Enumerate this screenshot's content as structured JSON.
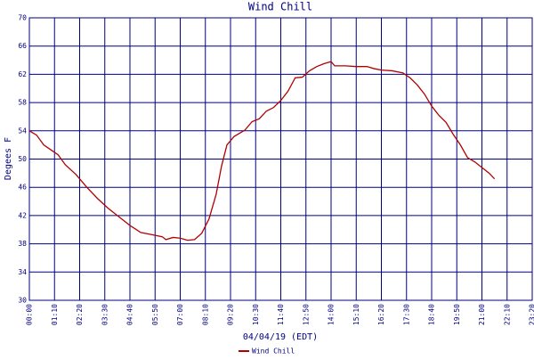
{
  "chart_data": {
    "type": "line",
    "title": "Wind Chill",
    "y_label": "Degees F",
    "x_label": "04/04/19 (EDT)",
    "xlim": [
      0,
      1400
    ],
    "ylim": [
      30,
      70
    ],
    "yticks": [
      30,
      34,
      38,
      42,
      46,
      50,
      54,
      58,
      62,
      66,
      70
    ],
    "xticks": [
      {
        "value": 0,
        "label": "00:00"
      },
      {
        "value": 70,
        "label": "01:10"
      },
      {
        "value": 140,
        "label": "02:20"
      },
      {
        "value": 210,
        "label": "03:30"
      },
      {
        "value": 280,
        "label": "04:40"
      },
      {
        "value": 350,
        "label": "05:50"
      },
      {
        "value": 420,
        "label": "07:00"
      },
      {
        "value": 490,
        "label": "08:10"
      },
      {
        "value": 560,
        "label": "09:20"
      },
      {
        "value": 630,
        "label": "10:30"
      },
      {
        "value": 700,
        "label": "11:40"
      },
      {
        "value": 770,
        "label": "12:50"
      },
      {
        "value": 840,
        "label": "14:00"
      },
      {
        "value": 910,
        "label": "15:10"
      },
      {
        "value": 980,
        "label": "16:20"
      },
      {
        "value": 1050,
        "label": "17:30"
      },
      {
        "value": 1120,
        "label": "18:40"
      },
      {
        "value": 1190,
        "label": "19:50"
      },
      {
        "value": 1260,
        "label": "21:00"
      },
      {
        "value": 1330,
        "label": "22:10"
      },
      {
        "value": 1400,
        "label": "23:20"
      }
    ],
    "grid": true,
    "legend": "bottom",
    "x": [
      0,
      20,
      40,
      60,
      80,
      100,
      130,
      160,
      190,
      220,
      250,
      280,
      310,
      340,
      370,
      380,
      400,
      420,
      440,
      460,
      480,
      500,
      520,
      535,
      550,
      570,
      600,
      620,
      640,
      660,
      680,
      700,
      720,
      740,
      760,
      780,
      800,
      820,
      840,
      850,
      880,
      910,
      940,
      960,
      980,
      1010,
      1040,
      1060,
      1080,
      1100,
      1120,
      1140,
      1160,
      1180,
      1200,
      1220,
      1240,
      1260,
      1280,
      1295
    ],
    "series": [
      {
        "name": "Wind Chill",
        "color": "#b00000",
        "values": [
          54,
          53.4,
          52,
          51.3,
          50.6,
          49.2,
          47.8,
          46,
          44.4,
          43,
          41.8,
          40.6,
          39.6,
          39.3,
          39,
          38.6,
          38.9,
          38.8,
          38.5,
          38.6,
          39.5,
          41.5,
          45,
          49,
          52,
          53.2,
          54.1,
          55.3,
          55.7,
          56.8,
          57.3,
          58.3,
          59.6,
          61.5,
          61.6,
          62.5,
          63.1,
          63.5,
          63.8,
          63.2,
          63.2,
          63.1,
          63.1,
          62.8,
          62.6,
          62.5,
          62.2,
          61.5,
          60.5,
          59.2,
          57.5,
          56.2,
          55.2,
          53.5,
          52,
          50.2,
          49.6,
          48.8,
          48,
          47.2
        ]
      }
    ]
  }
}
